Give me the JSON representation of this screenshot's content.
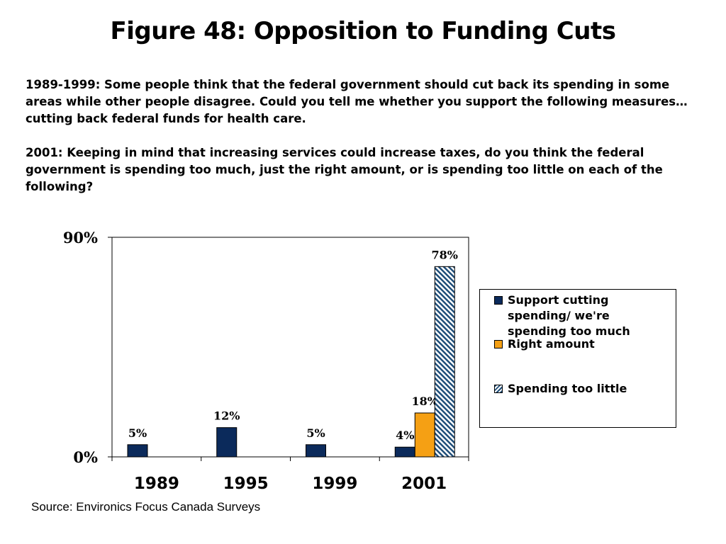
{
  "page": {
    "title": "Figure 48: Opposition to Funding Cuts",
    "question_1989_1999": "1989-1999: Some people think that the federal government should cut back its spending in some areas while other people disagree. Could you tell me whether you support the following measures… cutting back federal funds for health care.",
    "question_2001": "2001: Keeping in mind that increasing services could increase taxes, do you think the federal government is spending too much, just the right amount, or is spending too little on each of the following?",
    "source": "Source: Environics Focus Canada Surveys"
  },
  "chart_data": {
    "type": "bar",
    "categories": [
      "1989",
      "1995",
      "1999",
      "2001"
    ],
    "series": [
      {
        "name": "Support cutting spending/ we're spending too much",
        "values": [
          5,
          12,
          5,
          4
        ],
        "labels": [
          "5%",
          "12%",
          "5%",
          "4%"
        ],
        "color": "#0b2a5b"
      },
      {
        "name": "Right amount",
        "values": [
          null,
          null,
          null,
          18
        ],
        "labels": [
          "",
          "",
          "",
          "18%"
        ],
        "color": "#f5a014"
      },
      {
        "name": "Spending too little",
        "values": [
          null,
          null,
          null,
          78
        ],
        "labels": [
          "",
          "",
          "",
          "78%"
        ],
        "color": "#1f4e79",
        "pattern": "diagonal-hatch"
      }
    ],
    "ylim": [
      0,
      90
    ],
    "yticks": [
      0,
      90
    ],
    "ytick_labels": [
      "0%",
      "90%"
    ],
    "xlabel": "",
    "ylabel": "",
    "legend_position": "right",
    "grid": false
  }
}
